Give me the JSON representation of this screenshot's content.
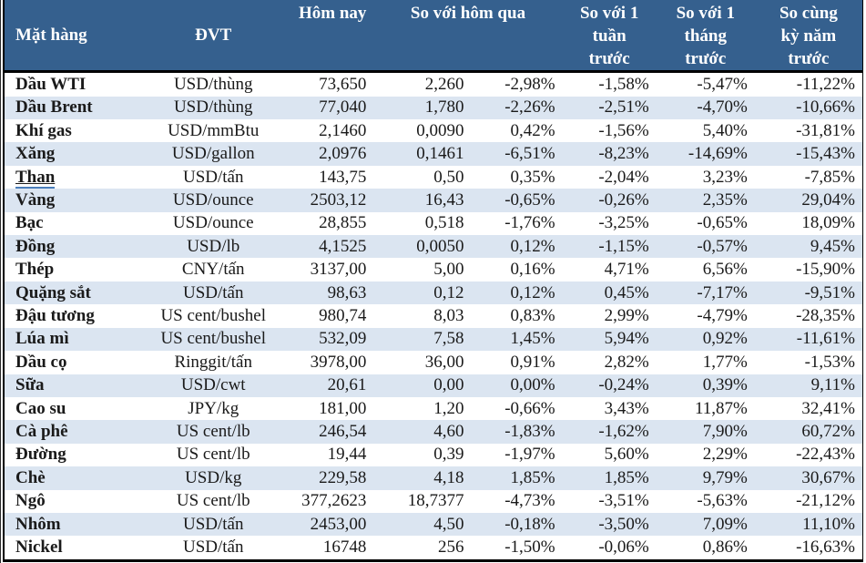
{
  "colors": {
    "header_bg": "#35608E",
    "header_text": "#FFFFFF",
    "band": "#DBE5F1",
    "border": "#000000",
    "link_underline": "#4A7EBB"
  },
  "table": {
    "headers": {
      "commodity": "Mặt hàng",
      "unit": "ĐVT",
      "today": "Hôm nay",
      "vs_yesterday": "So với hôm qua",
      "vs_week": "So với 1\ntuần\ntrước",
      "vs_month": "So với 1\ntháng\ntrước",
      "vs_year": "So cùng\nkỳ năm\ntrước"
    },
    "rows": [
      {
        "name": "Dầu WTI",
        "unit": "USD/thùng",
        "today": "73,650",
        "change": "2,260",
        "pct_day": "-2,98%",
        "pct_week": "-1,58%",
        "pct_month": "-5,47%",
        "pct_year": "-11,22%"
      },
      {
        "name": "Dầu Brent",
        "unit": "USD/thùng",
        "today": "77,040",
        "change": "1,780",
        "pct_day": "-2,26%",
        "pct_week": "-2,51%",
        "pct_month": "-4,70%",
        "pct_year": "-10,66%"
      },
      {
        "name": "Khí gas",
        "unit": "USD/mmBtu",
        "today": "2,1460",
        "change": "0,0090",
        "pct_day": "0,42%",
        "pct_week": "-1,56%",
        "pct_month": "5,40%",
        "pct_year": "-31,81%"
      },
      {
        "name": "Xăng",
        "unit": "USD/gallon",
        "today": "2,0976",
        "change": "0,1461",
        "pct_day": "-6,51%",
        "pct_week": "-8,23%",
        "pct_month": "-14,69%",
        "pct_year": "-15,43%"
      },
      {
        "name": "Than",
        "unit": "USD/tấn",
        "today": "143,75",
        "change": "0,50",
        "pct_day": "0,35%",
        "pct_week": "-2,04%",
        "pct_month": "3,23%",
        "pct_year": "-7,85%",
        "underlined": true
      },
      {
        "name": "Vàng",
        "unit": "USD/ounce",
        "today": "2503,12",
        "change": "16,43",
        "pct_day": "-0,65%",
        "pct_week": "-0,26%",
        "pct_month": "2,35%",
        "pct_year": "29,04%"
      },
      {
        "name": "Bạc",
        "unit": "USD/ounce",
        "today": "28,855",
        "change": "0,518",
        "pct_day": "-1,76%",
        "pct_week": "-3,25%",
        "pct_month": "-0,65%",
        "pct_year": "18,09%"
      },
      {
        "name": "Đồng",
        "unit": "USD/lb",
        "today": "4,1525",
        "change": "0,0050",
        "pct_day": "0,12%",
        "pct_week": "-1,15%",
        "pct_month": "-0,57%",
        "pct_year": "9,45%"
      },
      {
        "name": "Thép",
        "unit": "CNY/tấn",
        "today": "3137,00",
        "change": "5,00",
        "pct_day": "0,16%",
        "pct_week": "4,71%",
        "pct_month": "6,56%",
        "pct_year": "-15,90%"
      },
      {
        "name": "Quặng sắt",
        "unit": "USD/tấn",
        "today": "98,63",
        "change": "0,12",
        "pct_day": "0,12%",
        "pct_week": "0,45%",
        "pct_month": "-7,17%",
        "pct_year": "-9,51%"
      },
      {
        "name": "Đậu tương",
        "unit": "US cent/bushel",
        "today": "980,74",
        "change": "8,03",
        "pct_day": "0,83%",
        "pct_week": "2,99%",
        "pct_month": "-4,79%",
        "pct_year": "-28,35%"
      },
      {
        "name": "Lúa mì",
        "unit": "US cent/bushel",
        "today": "532,09",
        "change": "7,58",
        "pct_day": "1,45%",
        "pct_week": "5,94%",
        "pct_month": "0,92%",
        "pct_year": "-11,61%"
      },
      {
        "name": "Dầu cọ",
        "unit": "Ringgit/tấn",
        "today": "3978,00",
        "change": "36,00",
        "pct_day": "0,91%",
        "pct_week": "2,82%",
        "pct_month": "1,77%",
        "pct_year": "-1,53%"
      },
      {
        "name": "Sữa",
        "unit": "USD/cwt",
        "today": "20,61",
        "change": "0,00",
        "pct_day": "0,00%",
        "pct_week": "-0,24%",
        "pct_month": "0,39%",
        "pct_year": "9,11%"
      },
      {
        "name": "Cao su",
        "unit": "JPY/kg",
        "today": "181,00",
        "change": "1,20",
        "pct_day": "-0,66%",
        "pct_week": "3,43%",
        "pct_month": "11,87%",
        "pct_year": "32,41%"
      },
      {
        "name": "Cà phê",
        "unit": "US cent/lb",
        "today": "246,54",
        "change": "4,60",
        "pct_day": "-1,83%",
        "pct_week": "-1,62%",
        "pct_month": "7,90%",
        "pct_year": "60,72%"
      },
      {
        "name": "Đường",
        "unit": "US cent/lb",
        "today": "19,44",
        "change": "0,39",
        "pct_day": "-1,97%",
        "pct_week": "5,60%",
        "pct_month": "2,29%",
        "pct_year": "-22,43%"
      },
      {
        "name": "Chè",
        "unit": "USD/kg",
        "today": "229,58",
        "change": "4,18",
        "pct_day": "1,85%",
        "pct_week": "1,85%",
        "pct_month": "9,79%",
        "pct_year": "30,67%"
      },
      {
        "name": "Ngô",
        "unit": "US cent/lb",
        "today": "377,2623",
        "change": "18,7377",
        "pct_day": "-4,73%",
        "pct_week": "-3,51%",
        "pct_month": "-5,63%",
        "pct_year": "-21,12%"
      },
      {
        "name": "Nhôm",
        "unit": "USD/tấn",
        "today": "2453,00",
        "change": "4,50",
        "pct_day": "-0,18%",
        "pct_week": "-3,50%",
        "pct_month": "7,09%",
        "pct_year": "11,10%"
      },
      {
        "name": "Nickel",
        "unit": "USD/tấn",
        "today": "16748",
        "change": "256",
        "pct_day": "-1,50%",
        "pct_week": "-0,06%",
        "pct_month": "0,86%",
        "pct_year": "-16,63%"
      }
    ]
  }
}
